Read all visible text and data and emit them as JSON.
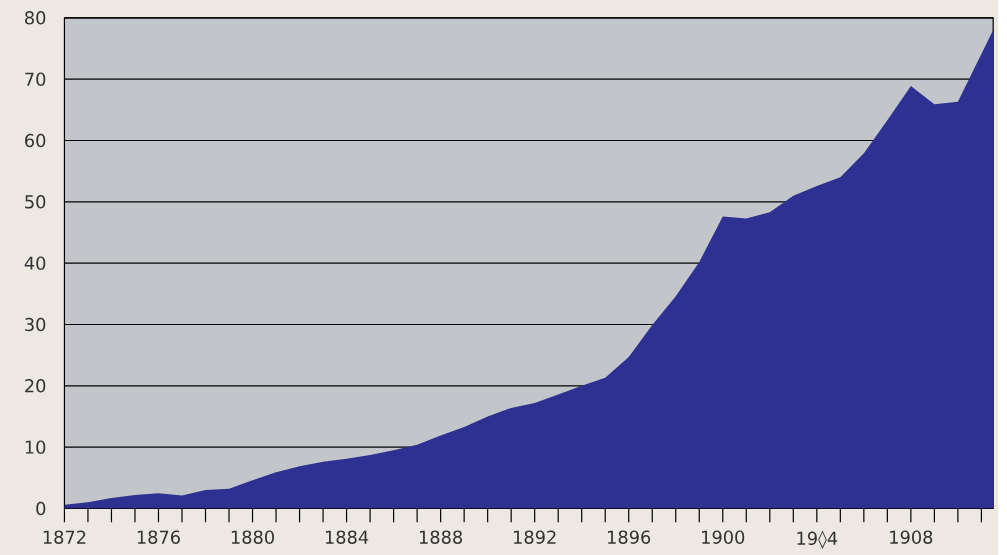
{
  "chart_data": {
    "type": "area",
    "x": [
      1872,
      1873,
      1874,
      1875,
      1876,
      1877,
      1878,
      1879,
      1880,
      1881,
      1882,
      1883,
      1884,
      1885,
      1886,
      1887,
      1888,
      1889,
      1890,
      1891,
      1892,
      1893,
      1894,
      1895,
      1896,
      1897,
      1898,
      1899,
      1900,
      1901,
      1902,
      1903,
      1904,
      1905,
      1906,
      1907,
      1908,
      1909,
      1910,
      1911.5
    ],
    "values": [
      0.6,
      1,
      1.7,
      2.2,
      2.5,
      2.1,
      3,
      3.2,
      4.6,
      5.9,
      6.9,
      7.6,
      8.1,
      8.7,
      9.5,
      10.4,
      11.9,
      13.3,
      15,
      16.4,
      17.2,
      18.6,
      20,
      21.3,
      24.7,
      29.9,
      34.6,
      40.2,
      47.6,
      47.3,
      48.3,
      51,
      52.6,
      54,
      57.9,
      63.3,
      68.9,
      65.9,
      66.3,
      78
    ],
    "color": "#2e3192",
    "xlim": [
      1872,
      1911.5
    ],
    "xticks": [
      {
        "value": 1872,
        "label": "1872"
      },
      {
        "value": 1873,
        "label": null
      },
      {
        "value": 1874,
        "label": null
      },
      {
        "value": 1875,
        "label": null
      },
      {
        "value": 1876,
        "label": "1876"
      },
      {
        "value": 1877,
        "label": null
      },
      {
        "value": 1878,
        "label": null
      },
      {
        "value": 1879,
        "label": null
      },
      {
        "value": 1880,
        "label": "1880"
      },
      {
        "value": 1881,
        "label": null
      },
      {
        "value": 1882,
        "label": null
      },
      {
        "value": 1883,
        "label": null
      },
      {
        "value": 1884,
        "label": "1884"
      },
      {
        "value": 1885,
        "label": null
      },
      {
        "value": 1886,
        "label": null
      },
      {
        "value": 1887,
        "label": null
      },
      {
        "value": 1888,
        "label": "1888"
      },
      {
        "value": 1889,
        "label": null
      },
      {
        "value": 1890,
        "label": null
      },
      {
        "value": 1891,
        "label": null
      },
      {
        "value": 1892,
        "label": "1892"
      },
      {
        "value": 1893,
        "label": null
      },
      {
        "value": 1894,
        "label": null
      },
      {
        "value": 1895,
        "label": null
      },
      {
        "value": 1896,
        "label": "1896"
      },
      {
        "value": 1897,
        "label": null
      },
      {
        "value": 1898,
        "label": null
      },
      {
        "value": 1899,
        "label": null
      },
      {
        "value": 1900,
        "label": "1900"
      },
      {
        "value": 1901,
        "label": null
      },
      {
        "value": 1902,
        "label": null
      },
      {
        "value": 1903,
        "label": null
      },
      {
        "value": 1904,
        "label": "19◊4"
      },
      {
        "value": 1905,
        "label": null
      },
      {
        "value": 1906,
        "label": null
      },
      {
        "value": 1907,
        "label": null
      },
      {
        "value": 1908,
        "label": "1908"
      },
      {
        "value": 1909,
        "label": null
      },
      {
        "value": 1910,
        "label": null
      },
      {
        "value": 1911,
        "label": null
      }
    ],
    "ylim": [
      0,
      80
    ],
    "yticks": [
      0,
      10,
      20,
      30,
      40,
      50,
      60,
      70,
      80
    ],
    "grid": "y"
  }
}
